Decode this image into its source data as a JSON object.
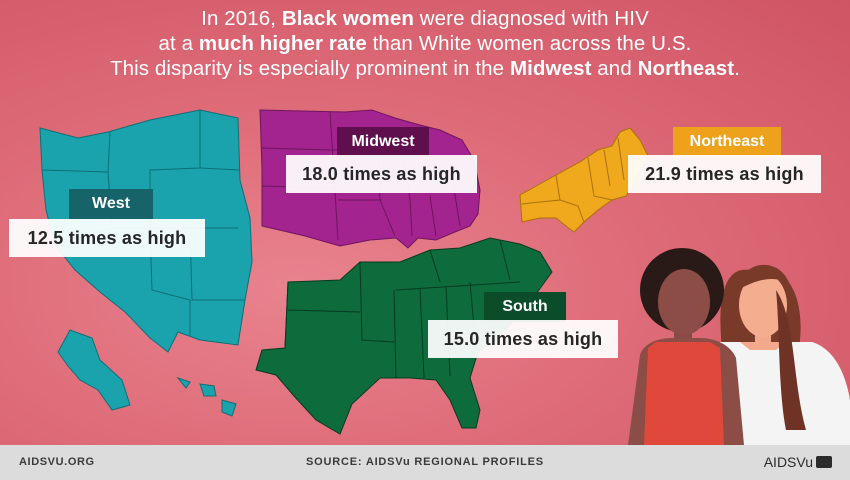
{
  "headline": {
    "l1_a": "In 2016, ",
    "l1_b": "Black women",
    "l1_c": " were diagnosed with HIV",
    "l2_a": "at a ",
    "l2_b": "much higher rate",
    "l2_c": " than White women across the U.S.",
    "l3_a": "This disparity is especially prominent in the ",
    "l3_b": "Midwest",
    "l3_c": " and ",
    "l3_d": "Northeast",
    "l3_e": "."
  },
  "regions": {
    "west": {
      "label": "West",
      "stat": "12.5 times as high",
      "color": "#1aa3ad"
    },
    "midwest": {
      "label": "Midwest",
      "stat": "18.0 times as high",
      "color": "#a3238f"
    },
    "northeast": {
      "label": "Northeast",
      "stat": "21.9 times as high",
      "color": "#f0a81c"
    },
    "south": {
      "label": "South",
      "stat": "15.0 times as high",
      "color": "#0e6b3c"
    }
  },
  "footer": {
    "left": "AIDSVU.ORG",
    "source": "SOURCE: AIDSVu REGIONAL PROFILES",
    "brand": "AIDSVu"
  }
}
